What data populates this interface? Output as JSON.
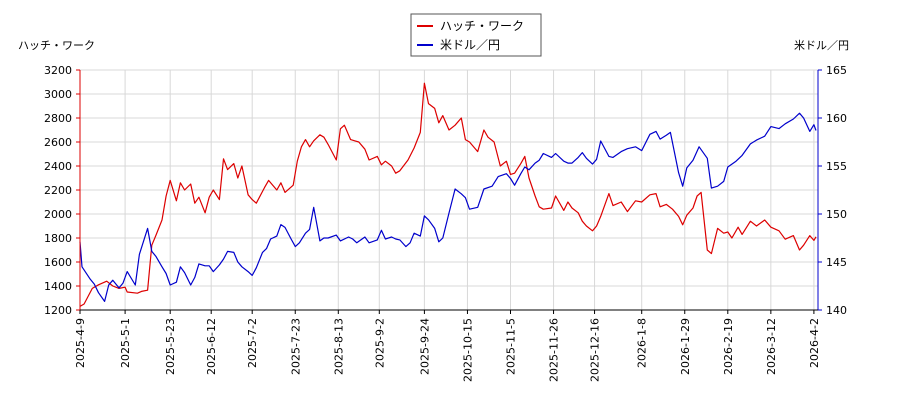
{
  "chart_data": {
    "type": "line",
    "left_axis_label": "ハッチ・ワーク",
    "right_axis_label": "米ドル／円",
    "x_ticks": [
      "2025-4-9",
      "2025-5-1",
      "2025-5-23",
      "2025-6-12",
      "2025-7-2",
      "2025-7-23",
      "2025-8-13",
      "2025-9-2",
      "2025-9-24",
      "2025-10-15",
      "2025-11-5",
      "2025-11-26",
      "2025-12-16",
      "2026-1-8",
      "2026-1-29",
      "2026-2-19",
      "2026-3-12",
      "2026-4-2"
    ],
    "x_range": [
      "2025-4-9",
      "2026-4-4"
    ],
    "left_ylim": [
      1200,
      3200
    ],
    "left_ticks": [
      1200,
      1400,
      1600,
      1800,
      2000,
      2200,
      2400,
      2600,
      2800,
      3000,
      3200
    ],
    "right_ylim": [
      140,
      165
    ],
    "right_ticks": [
      140,
      145,
      150,
      155,
      160,
      165
    ],
    "grid": true,
    "legend_position": "top-center",
    "series": [
      {
        "name": "ハッチ・ワーク",
        "axis": "left",
        "color": "#dd0000",
        "points": [
          [
            "2025-4-9",
            1230
          ],
          [
            "2025-4-11",
            1250
          ],
          [
            "2025-4-15",
            1380
          ],
          [
            "2025-4-18",
            1410
          ],
          [
            "2025-4-22",
            1440
          ],
          [
            "2025-4-25",
            1400
          ],
          [
            "2025-4-28",
            1380
          ],
          [
            "2025-5-1",
            1390
          ],
          [
            "2025-5-2",
            1350
          ],
          [
            "2025-5-7",
            1340
          ],
          [
            "2025-5-9",
            1355
          ],
          [
            "2025-5-12",
            1365
          ],
          [
            "2025-5-14",
            1740
          ],
          [
            "2025-5-16",
            1820
          ],
          [
            "2025-5-19",
            1950
          ],
          [
            "2025-5-21",
            2150
          ],
          [
            "2025-5-23",
            2280
          ],
          [
            "2025-5-26",
            2110
          ],
          [
            "2025-5-28",
            2260
          ],
          [
            "2025-5-30",
            2200
          ],
          [
            "2025-6-2",
            2250
          ],
          [
            "2025-6-4",
            2090
          ],
          [
            "2025-6-6",
            2140
          ],
          [
            "2025-6-9",
            2010
          ],
          [
            "2025-6-11",
            2140
          ],
          [
            "2025-6-13",
            2200
          ],
          [
            "2025-6-16",
            2120
          ],
          [
            "2025-6-18",
            2460
          ],
          [
            "2025-6-20",
            2370
          ],
          [
            "2025-6-23",
            2420
          ],
          [
            "2025-6-25",
            2300
          ],
          [
            "2025-6-27",
            2400
          ],
          [
            "2025-6-30",
            2160
          ],
          [
            "2025-7-2",
            2120
          ],
          [
            "2025-7-4",
            2090
          ],
          [
            "2025-7-8",
            2220
          ],
          [
            "2025-7-10",
            2280
          ],
          [
            "2025-7-14",
            2200
          ],
          [
            "2025-7-16",
            2260
          ],
          [
            "2025-7-18",
            2180
          ],
          [
            "2025-7-22",
            2240
          ],
          [
            "2025-7-24",
            2440
          ],
          [
            "2025-7-26",
            2560
          ],
          [
            "2025-7-28",
            2620
          ],
          [
            "2025-7-30",
            2560
          ],
          [
            "2025-8-1",
            2610
          ],
          [
            "2025-8-4",
            2660
          ],
          [
            "2025-8-6",
            2640
          ],
          [
            "2025-8-8",
            2580
          ],
          [
            "2025-8-12",
            2450
          ],
          [
            "2025-8-14",
            2710
          ],
          [
            "2025-8-16",
            2740
          ],
          [
            "2025-8-19",
            2620
          ],
          [
            "2025-8-21",
            2610
          ],
          [
            "2025-8-23",
            2600
          ],
          [
            "2025-8-26",
            2540
          ],
          [
            "2025-8-28",
            2450
          ],
          [
            "2025-9-1",
            2480
          ],
          [
            "2025-9-3",
            2410
          ],
          [
            "2025-9-5",
            2440
          ],
          [
            "2025-9-8",
            2400
          ],
          [
            "2025-9-10",
            2340
          ],
          [
            "2025-9-12",
            2360
          ],
          [
            "2025-9-16",
            2450
          ],
          [
            "2025-9-19",
            2550
          ],
          [
            "2025-9-22",
            2680
          ],
          [
            "2025-9-24",
            3090
          ],
          [
            "2025-9-26",
            2920
          ],
          [
            "2025-9-29",
            2880
          ],
          [
            "2025-10-1",
            2760
          ],
          [
            "2025-10-3",
            2820
          ],
          [
            "2025-10-6",
            2700
          ],
          [
            "2025-10-9",
            2740
          ],
          [
            "2025-10-12",
            2800
          ],
          [
            "2025-10-14",
            2620
          ],
          [
            "2025-10-16",
            2600
          ],
          [
            "2025-10-20",
            2520
          ],
          [
            "2025-10-23",
            2700
          ],
          [
            "2025-10-25",
            2640
          ],
          [
            "2025-10-28",
            2600
          ],
          [
            "2025-10-31",
            2400
          ],
          [
            "2025-11-3",
            2440
          ],
          [
            "2025-11-5",
            2330
          ],
          [
            "2025-11-7",
            2340
          ],
          [
            "2025-11-10",
            2420
          ],
          [
            "2025-11-12",
            2480
          ],
          [
            "2025-11-14",
            2300
          ],
          [
            "2025-11-17",
            2150
          ],
          [
            "2025-11-19",
            2060
          ],
          [
            "2025-11-21",
            2040
          ],
          [
            "2025-11-25",
            2050
          ],
          [
            "2025-11-27",
            2150
          ],
          [
            "2025-12-1",
            2030
          ],
          [
            "2025-12-3",
            2100
          ],
          [
            "2025-12-5",
            2050
          ],
          [
            "2025-12-8",
            2010
          ],
          [
            "2025-12-10",
            1940
          ],
          [
            "2025-12-12",
            1900
          ],
          [
            "2025-12-15",
            1860
          ],
          [
            "2025-12-17",
            1900
          ],
          [
            "2025-12-19",
            1980
          ],
          [
            "2025-12-23",
            2170
          ],
          [
            "2025-12-25",
            2070
          ],
          [
            "2025-12-29",
            2100
          ],
          [
            "2026-1-1",
            2020
          ],
          [
            "2026-1-5",
            2110
          ],
          [
            "2026-1-8",
            2100
          ],
          [
            "2026-1-12",
            2160
          ],
          [
            "2026-1-15",
            2170
          ],
          [
            "2026-1-17",
            2060
          ],
          [
            "2026-1-20",
            2080
          ],
          [
            "2026-1-23",
            2040
          ],
          [
            "2026-1-26",
            1980
          ],
          [
            "2026-1-28",
            1910
          ],
          [
            "2026-1-30",
            1990
          ],
          [
            "2026-2-2",
            2050
          ],
          [
            "2026-2-4",
            2150
          ],
          [
            "2026-2-6",
            2180
          ],
          [
            "2026-2-9",
            1700
          ],
          [
            "2026-2-11",
            1670
          ],
          [
            "2026-2-14",
            1880
          ],
          [
            "2026-2-17",
            1840
          ],
          [
            "2026-2-19",
            1850
          ],
          [
            "2026-2-21",
            1800
          ],
          [
            "2026-2-24",
            1890
          ],
          [
            "2026-2-26",
            1830
          ],
          [
            "2026-3-2",
            1940
          ],
          [
            "2026-3-5",
            1900
          ],
          [
            "2026-3-9",
            1950
          ],
          [
            "2026-3-12",
            1890
          ],
          [
            "2026-3-16",
            1860
          ],
          [
            "2026-3-19",
            1790
          ],
          [
            "2026-3-23",
            1820
          ],
          [
            "2026-3-26",
            1700
          ],
          [
            "2026-3-28",
            1740
          ],
          [
            "2026-3-31",
            1820
          ],
          [
            "2026-4-2",
            1780
          ],
          [
            "2026-4-3",
            1810
          ]
        ]
      },
      {
        "name": "米ドル／円",
        "axis": "right",
        "color": "#0000cc",
        "points": [
          [
            "2025-4-9",
            147.1
          ],
          [
            "2025-4-10",
            144.5
          ],
          [
            "2025-4-14",
            143.2
          ],
          [
            "2025-4-16",
            142.7
          ],
          [
            "2025-4-18",
            141.8
          ],
          [
            "2025-4-21",
            140.9
          ],
          [
            "2025-4-23",
            142.6
          ],
          [
            "2025-4-25",
            143.1
          ],
          [
            "2025-4-28",
            142.3
          ],
          [
            "2025-4-30",
            142.8
          ],
          [
            "2025-5-2",
            144.0
          ],
          [
            "2025-5-6",
            142.6
          ],
          [
            "2025-5-8",
            145.8
          ],
          [
            "2025-5-12",
            148.5
          ],
          [
            "2025-5-14",
            146.1
          ],
          [
            "2025-5-16",
            145.6
          ],
          [
            "2025-5-19",
            144.5
          ],
          [
            "2025-5-21",
            143.8
          ],
          [
            "2025-5-23",
            142.6
          ],
          [
            "2025-5-26",
            142.9
          ],
          [
            "2025-5-28",
            144.5
          ],
          [
            "2025-5-30",
            143.9
          ],
          [
            "2025-6-2",
            142.6
          ],
          [
            "2025-6-4",
            143.4
          ],
          [
            "2025-6-6",
            144.8
          ],
          [
            "2025-6-9",
            144.6
          ],
          [
            "2025-6-11",
            144.6
          ],
          [
            "2025-6-13",
            144.0
          ],
          [
            "2025-6-16",
            144.7
          ],
          [
            "2025-6-18",
            145.3
          ],
          [
            "2025-6-20",
            146.1
          ],
          [
            "2025-6-23",
            146.0
          ],
          [
            "2025-6-25",
            145.0
          ],
          [
            "2025-6-27",
            144.5
          ],
          [
            "2025-6-30",
            144.0
          ],
          [
            "2025-7-2",
            143.6
          ],
          [
            "2025-7-4",
            144.4
          ],
          [
            "2025-7-7",
            146.0
          ],
          [
            "2025-7-9",
            146.4
          ],
          [
            "2025-7-11",
            147.4
          ],
          [
            "2025-7-14",
            147.7
          ],
          [
            "2025-7-16",
            148.9
          ],
          [
            "2025-7-18",
            148.6
          ],
          [
            "2025-7-21",
            147.4
          ],
          [
            "2025-7-23",
            146.6
          ],
          [
            "2025-7-25",
            147.0
          ],
          [
            "2025-7-28",
            148.0
          ],
          [
            "2025-7-30",
            148.4
          ],
          [
            "2025-8-1",
            150.7
          ],
          [
            "2025-8-4",
            147.2
          ],
          [
            "2025-8-6",
            147.5
          ],
          [
            "2025-8-8",
            147.5
          ],
          [
            "2025-8-12",
            147.8
          ],
          [
            "2025-8-14",
            147.2
          ],
          [
            "2025-8-18",
            147.6
          ],
          [
            "2025-8-20",
            147.4
          ],
          [
            "2025-8-22",
            147.0
          ],
          [
            "2025-8-26",
            147.6
          ],
          [
            "2025-8-28",
            147.0
          ],
          [
            "2025-9-1",
            147.3
          ],
          [
            "2025-9-3",
            148.3
          ],
          [
            "2025-9-5",
            147.4
          ],
          [
            "2025-9-8",
            147.6
          ],
          [
            "2025-9-10",
            147.4
          ],
          [
            "2025-9-12",
            147.3
          ],
          [
            "2025-9-15",
            146.6
          ],
          [
            "2025-9-17",
            147.0
          ],
          [
            "2025-9-19",
            148.0
          ],
          [
            "2025-9-22",
            147.7
          ],
          [
            "2025-9-24",
            149.8
          ],
          [
            "2025-9-26",
            149.4
          ],
          [
            "2025-9-29",
            148.5
          ],
          [
            "2025-10-1",
            147.1
          ],
          [
            "2025-10-3",
            147.5
          ],
          [
            "2025-10-6",
            150.1
          ],
          [
            "2025-10-9",
            152.6
          ],
          [
            "2025-10-12",
            152.1
          ],
          [
            "2025-10-14",
            151.7
          ],
          [
            "2025-10-16",
            150.5
          ],
          [
            "2025-10-20",
            150.7
          ],
          [
            "2025-10-23",
            152.6
          ],
          [
            "2025-10-27",
            152.9
          ],
          [
            "2025-10-30",
            153.9
          ],
          [
            "2025-11-3",
            154.2
          ],
          [
            "2025-11-5",
            153.7
          ],
          [
            "2025-11-7",
            153.0
          ],
          [
            "2025-11-10",
            154.2
          ],
          [
            "2025-11-12",
            154.9
          ],
          [
            "2025-11-14",
            154.6
          ],
          [
            "2025-11-17",
            155.3
          ],
          [
            "2025-11-19",
            155.6
          ],
          [
            "2025-11-21",
            156.3
          ],
          [
            "2025-11-25",
            155.9
          ],
          [
            "2025-11-27",
            156.3
          ],
          [
            "2025-12-1",
            155.5
          ],
          [
            "2025-12-3",
            155.3
          ],
          [
            "2025-12-5",
            155.3
          ],
          [
            "2025-12-8",
            155.9
          ],
          [
            "2025-12-10",
            156.4
          ],
          [
            "2025-12-12",
            155.8
          ],
          [
            "2025-12-15",
            155.2
          ],
          [
            "2025-12-17",
            155.7
          ],
          [
            "2025-12-19",
            157.6
          ],
          [
            "2025-12-23",
            156.0
          ],
          [
            "2025-12-25",
            155.9
          ],
          [
            "2025-12-29",
            156.5
          ],
          [
            "2026-1-1",
            156.8
          ],
          [
            "2026-1-5",
            157.0
          ],
          [
            "2026-1-8",
            156.6
          ],
          [
            "2026-1-12",
            158.3
          ],
          [
            "2026-1-15",
            158.6
          ],
          [
            "2026-1-17",
            157.8
          ],
          [
            "2026-1-20",
            158.2
          ],
          [
            "2026-1-22",
            158.5
          ],
          [
            "2026-1-26",
            154.3
          ],
          [
            "2026-1-28",
            152.9
          ],
          [
            "2026-1-30",
            154.8
          ],
          [
            "2026-2-2",
            155.6
          ],
          [
            "2026-2-5",
            157.0
          ],
          [
            "2026-2-9",
            155.8
          ],
          [
            "2026-2-11",
            152.7
          ],
          [
            "2026-2-14",
            152.9
          ],
          [
            "2026-2-17",
            153.4
          ],
          [
            "2026-2-19",
            154.9
          ],
          [
            "2026-2-23",
            155.5
          ],
          [
            "2026-2-26",
            156.1
          ],
          [
            "2026-3-2",
            157.3
          ],
          [
            "2026-3-5",
            157.7
          ],
          [
            "2026-3-9",
            158.1
          ],
          [
            "2026-3-12",
            159.1
          ],
          [
            "2026-3-16",
            158.9
          ],
          [
            "2026-3-19",
            159.4
          ],
          [
            "2026-3-23",
            159.9
          ],
          [
            "2026-3-26",
            160.5
          ],
          [
            "2026-3-28",
            160.0
          ],
          [
            "2026-3-31",
            158.6
          ],
          [
            "2026-4-2",
            159.3
          ],
          [
            "2026-4-3",
            158.7
          ]
        ]
      }
    ]
  }
}
